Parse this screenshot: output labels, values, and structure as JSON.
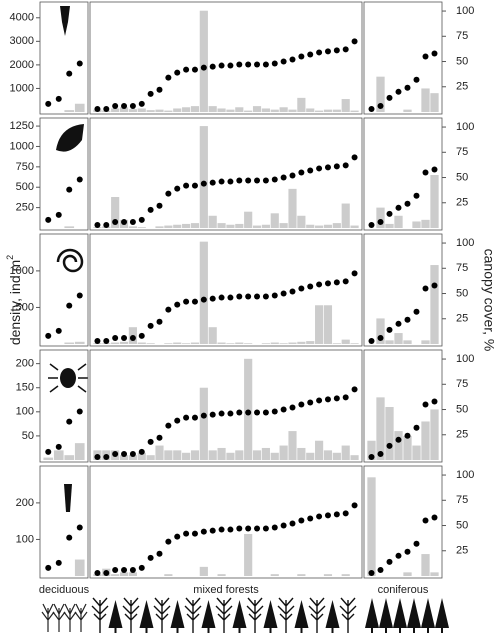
{
  "axes": {
    "ylabel": "density, ind m",
    "ylabel_sup": "2",
    "y2label": "canopy cover, %"
  },
  "group_labels": [
    "deciduous",
    "mixed forests",
    "coniferous"
  ],
  "chart_data": [
    {
      "type": "bar_dot",
      "bar_color": "#cccccc",
      "dot_color": "#000000",
      "ylim": [
        0,
        4500
      ],
      "yticks": [
        1000,
        2000,
        3000,
        4000
      ],
      "y2lim": [
        0,
        105
      ],
      "y2ticks": [
        25,
        50,
        75,
        100
      ],
      "groups": [
        {
          "bars": [
            0,
            0,
            80,
            350
          ],
          "canopy": [
            8,
            13,
            38,
            48
          ]
        },
        {
          "bars": [
            100,
            60,
            150,
            200,
            120,
            150,
            80,
            100,
            60,
            150,
            200,
            250,
            4300,
            250,
            150,
            100,
            200,
            60,
            250,
            150,
            100,
            200,
            100,
            600,
            150,
            60,
            100,
            100,
            550,
            60
          ],
          "canopy": [
            3,
            3,
            6,
            6,
            6,
            8,
            18,
            22,
            34,
            39,
            42,
            42,
            44,
            45,
            46,
            46,
            47,
            47,
            47,
            47,
            48,
            50,
            52,
            55,
            57,
            59,
            60,
            61,
            62,
            70
          ]
        },
        {
          "bars": [
            0,
            1500,
            0,
            0,
            100,
            0,
            1000,
            800
          ],
          "canopy": [
            3,
            6,
            14,
            20,
            24,
            32,
            55,
            58
          ]
        }
      ]
    },
    {
      "type": "bar_dot",
      "bar_color": "#cccccc",
      "dot_color": "#000000",
      "ylim": [
        0,
        1300
      ],
      "yticks": [
        250,
        500,
        750,
        1000,
        1250
      ],
      "y2lim": [
        0,
        105
      ],
      "y2ticks": [
        25,
        50,
        75,
        100
      ],
      "groups": [
        {
          "bars": [
            0,
            0,
            20,
            0
          ],
          "canopy": [
            8,
            13,
            38,
            48
          ]
        },
        {
          "bars": [
            10,
            20,
            380,
            100,
            20,
            10,
            0,
            20,
            30,
            40,
            50,
            60,
            1250,
            150,
            60,
            40,
            50,
            200,
            30,
            40,
            180,
            60,
            480,
            150,
            40,
            30,
            40,
            60,
            300,
            30
          ],
          "canopy": [
            3,
            3,
            6,
            6,
            6,
            8,
            18,
            22,
            34,
            39,
            42,
            42,
            44,
            45,
            46,
            46,
            47,
            47,
            47,
            47,
            48,
            50,
            52,
            55,
            57,
            59,
            60,
            61,
            62,
            70
          ]
        },
        {
          "bars": [
            0,
            250,
            50,
            150,
            0,
            80,
            100,
            650
          ],
          "canopy": [
            3,
            6,
            14,
            20,
            24,
            32,
            55,
            58
          ]
        }
      ]
    },
    {
      "type": "bar_dot",
      "bar_color": "#cccccc",
      "dot_color": "#000000",
      "ylim": [
        0,
        1450
      ],
      "yticks": [
        500,
        1000
      ],
      "y2lim": [
        0,
        105
      ],
      "y2ticks": [
        25,
        50,
        75,
        100
      ],
      "groups": [
        {
          "bars": [
            0,
            0,
            20,
            30
          ],
          "canopy": [
            8,
            13,
            38,
            48
          ]
        },
        {
          "bars": [
            10,
            10,
            20,
            30,
            230,
            20,
            10,
            0,
            10,
            20,
            10,
            20,
            1400,
            230,
            20,
            10,
            20,
            10,
            0,
            10,
            20,
            10,
            20,
            30,
            40,
            530,
            530,
            10,
            60,
            10
          ],
          "canopy": [
            3,
            3,
            6,
            6,
            6,
            8,
            18,
            22,
            34,
            39,
            42,
            42,
            44,
            45,
            46,
            46,
            47,
            47,
            47,
            47,
            48,
            50,
            52,
            55,
            57,
            59,
            60,
            61,
            62,
            70
          ]
        },
        {
          "bars": [
            0,
            350,
            50,
            150,
            50,
            0,
            50,
            1080
          ],
          "canopy": [
            3,
            6,
            14,
            20,
            24,
            32,
            55,
            58
          ]
        }
      ]
    },
    {
      "type": "bar_dot",
      "bar_color": "#cccccc",
      "dot_color": "#000000",
      "ylim": [
        0,
        220
      ],
      "yticks": [
        50,
        100,
        150,
        200
      ],
      "y2lim": [
        0,
        105
      ],
      "y2ticks": [
        25,
        50,
        75,
        100
      ],
      "groups": [
        {
          "bars": [
            5,
            20,
            10,
            35
          ],
          "canopy": [
            8,
            13,
            38,
            48
          ]
        },
        {
          "bars": [
            20,
            20,
            20,
            10,
            10,
            15,
            10,
            30,
            20,
            20,
            15,
            20,
            150,
            20,
            25,
            15,
            20,
            210,
            20,
            25,
            15,
            30,
            60,
            25,
            15,
            40,
            20,
            15,
            30,
            10
          ],
          "canopy": [
            3,
            3,
            6,
            6,
            6,
            8,
            18,
            22,
            34,
            39,
            42,
            42,
            44,
            45,
            46,
            46,
            47,
            47,
            47,
            47,
            48,
            50,
            52,
            55,
            57,
            59,
            60,
            61,
            62,
            70
          ]
        },
        {
          "bars": [
            40,
            130,
            110,
            60,
            50,
            30,
            80,
            105
          ],
          "canopy": [
            3,
            6,
            14,
            20,
            24,
            32,
            55,
            58
          ]
        }
      ]
    },
    {
      "type": "bar_dot",
      "bar_color": "#cccccc",
      "dot_color": "#000000",
      "ylim": [
        0,
        290
      ],
      "yticks": [
        100,
        200
      ],
      "y2lim": [
        0,
        105
      ],
      "y2ticks": [
        25,
        50,
        75,
        100
      ],
      "groups": [
        {
          "bars": [
            0,
            0,
            0,
            45
          ],
          "canopy": [
            8,
            13,
            38,
            48
          ]
        },
        {
          "bars": [
            5,
            20,
            5,
            10,
            10,
            0,
            0,
            0,
            5,
            0,
            0,
            0,
            25,
            0,
            5,
            0,
            0,
            115,
            0,
            0,
            5,
            0,
            0,
            5,
            0,
            0,
            5,
            0,
            5,
            0
          ],
          "canopy": [
            3,
            3,
            6,
            6,
            6,
            8,
            18,
            22,
            34,
            39,
            42,
            42,
            44,
            45,
            46,
            46,
            47,
            47,
            47,
            47,
            48,
            50,
            52,
            55,
            57,
            59,
            60,
            61,
            62,
            70
          ]
        },
        {
          "bars": [
            270,
            0,
            0,
            0,
            10,
            0,
            60,
            10
          ],
          "canopy": [
            3,
            6,
            14,
            20,
            24,
            32,
            55,
            58
          ]
        }
      ]
    }
  ]
}
